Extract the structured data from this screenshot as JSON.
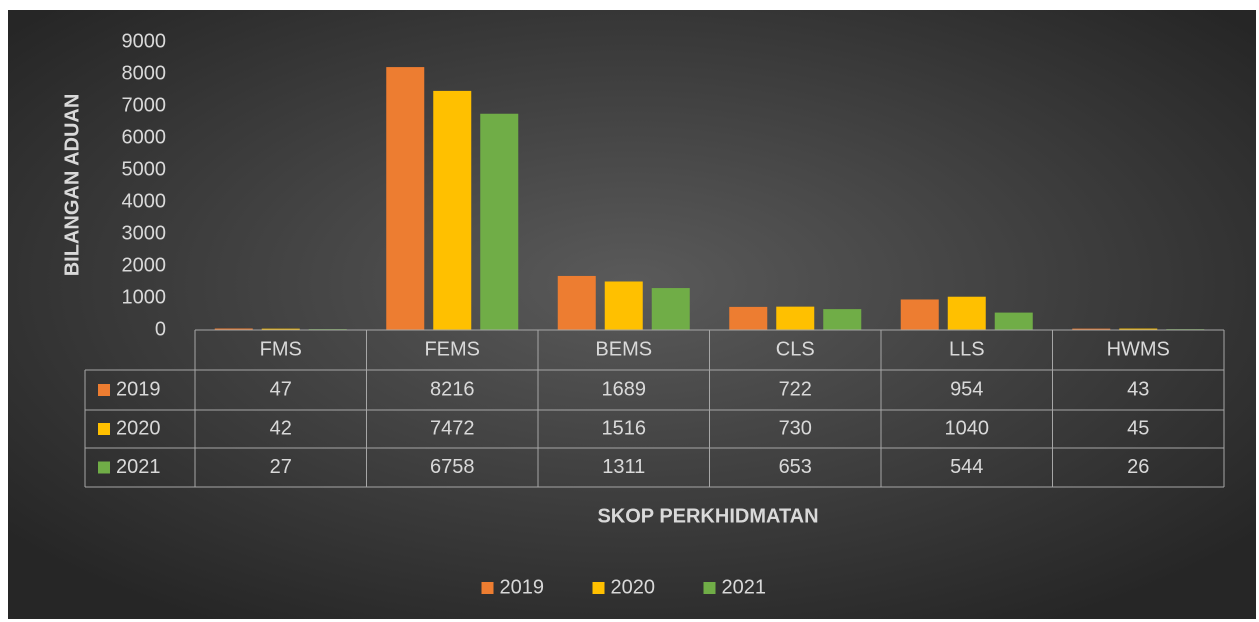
{
  "chart_data": {
    "type": "bar",
    "y_label": "BILANGAN ADUAN",
    "x_label": "SKOP PERKHIDMATAN",
    "categories": [
      "FMS",
      "FEMS",
      "BEMS",
      "CLS",
      "LLS",
      "HWMS"
    ],
    "series": [
      {
        "name": "2019",
        "color": "#ed7d31",
        "values": [
          47,
          8216,
          1689,
          722,
          954,
          43
        ]
      },
      {
        "name": "2020",
        "color": "#ffc000",
        "values": [
          42,
          7472,
          1516,
          730,
          1040,
          45
        ]
      },
      {
        "name": "2021",
        "color": "#70ad47",
        "values": [
          27,
          6758,
          1311,
          653,
          544,
          26
        ]
      }
    ],
    "ylim": [
      0,
      9000
    ],
    "yticks": [
      0,
      1000,
      2000,
      3000,
      4000,
      5000,
      6000,
      7000,
      8000,
      9000
    ],
    "grid": false,
    "legend": "bottom",
    "data_table": true
  }
}
